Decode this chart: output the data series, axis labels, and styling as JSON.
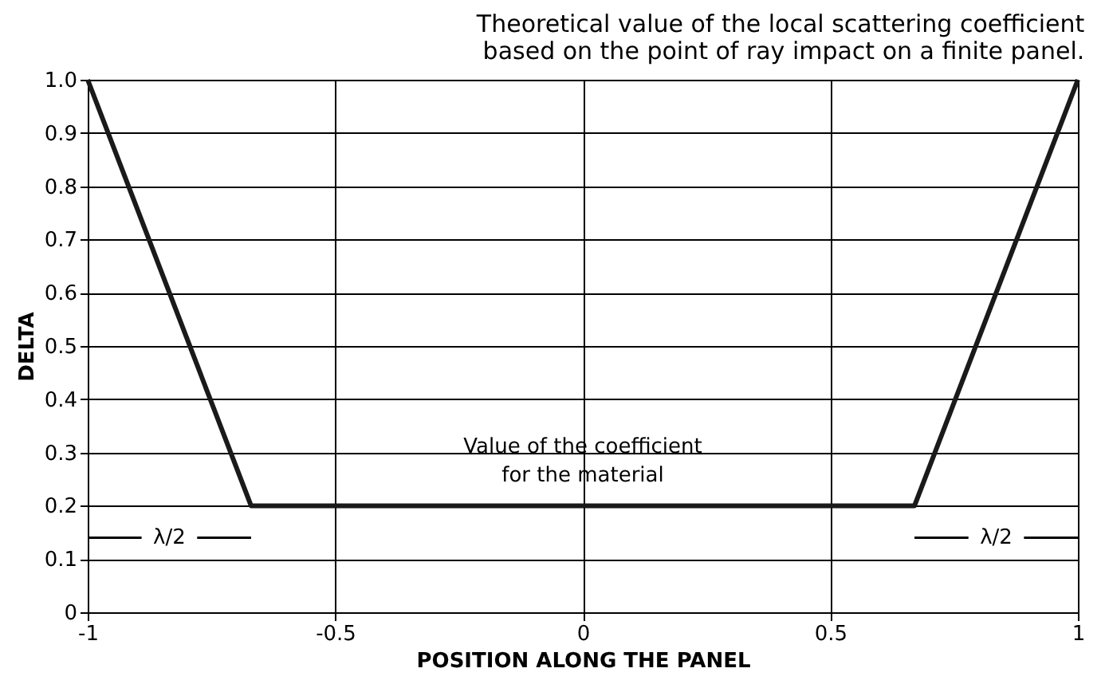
{
  "chart_data": {
    "type": "line",
    "title": [
      "Theoretical value of the local scattering coefficient",
      "based on the point of ray impact on a finite panel."
    ],
    "xlabel": "POSITION ALONG THE PANEL",
    "ylabel": "DELTA",
    "x": [
      -1,
      -0.67,
      0.67,
      1
    ],
    "series": [
      {
        "color": "#1a1a1a",
        "values": [
          1.0,
          0.2,
          0.2,
          1.0
        ]
      }
    ],
    "xlim": [
      -1,
      1
    ],
    "ylim": [
      0,
      1
    ],
    "xticks": [
      -1,
      -0.5,
      0,
      0.5,
      1
    ],
    "yticks": [
      0,
      0.1,
      0.2,
      0.3,
      0.4,
      0.5,
      0.6,
      0.7,
      0.8,
      0.9,
      {
        "value": 1,
        "label": "1.0"
      }
    ],
    "grid": true,
    "marker": "none",
    "line_style": "solid",
    "annotations": [
      "Value of the coefficient\nfor the material",
      "λ/2",
      "λ/2"
    ]
  }
}
